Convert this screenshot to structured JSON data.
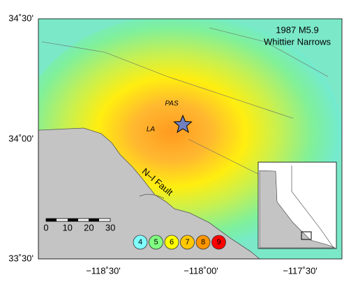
{
  "title": [
    "1987 M5.9",
    "Whittier Narrows"
  ],
  "lat_labels": [
    "34˚30'",
    "34˚00'",
    "33˚30'"
  ],
  "lon_labels": [
    "−118˚30'",
    "−118˚00'",
    "−117˚30'"
  ],
  "places": [
    "PAS",
    "LA"
  ],
  "fault": "N–I Fault",
  "scale_bar": [
    "0",
    "10",
    "20",
    "30"
  ],
  "intensity_legend": [
    {
      "label": "4",
      "color": "#80ffff"
    },
    {
      "label": "5",
      "color": "#80ff80"
    },
    {
      "label": "6",
      "color": "#ffff00"
    },
    {
      "label": "7",
      "color": "#ffc800"
    },
    {
      "label": "8",
      "color": "#ff9600"
    },
    {
      "label": "9",
      "color": "#ff0000"
    }
  ]
}
